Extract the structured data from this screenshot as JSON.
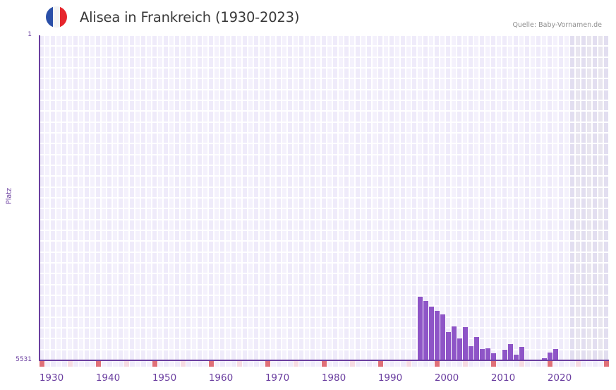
{
  "header": {
    "flag_icon": "france-flag-icon",
    "flag_colors": [
      "#2a4fa8",
      "#f4f4f4",
      "#e6262d"
    ],
    "title": "Alisea in Frankreich (1930-2023)",
    "source": "Quelle: Baby-Vornamen.de"
  },
  "colors": {
    "bar": "#8e55c7",
    "axis": "#6b3fa0",
    "grid_a": "#efebfa",
    "grid_b": "#f4f1fc",
    "future_a": "#e2def0",
    "future_b": "#e8e5ef",
    "marker_decade": "#e07078",
    "marker_half": "#f6dbe2"
  },
  "chart_data": {
    "type": "bar",
    "title": "Alisea in Frankreich (1930-2023)",
    "xlabel": "",
    "ylabel": "Platz",
    "y_inverted": true,
    "ylim": [
      1,
      5531
    ],
    "yticks": [
      "1",
      "5531"
    ],
    "xlim": [
      1930,
      2030
    ],
    "xticks": [
      "1930",
      "1940",
      "1950",
      "1960",
      "1970",
      "1980",
      "1990",
      "2000",
      "2010",
      "2020"
    ],
    "grid": true,
    "future_shaded_from": 2024,
    "categories": [
      1997,
      1998,
      1999,
      2000,
      2001,
      2002,
      2003,
      2004,
      2005,
      2006,
      2007,
      2008,
      2009,
      2010,
      2012,
      2013,
      2014,
      2015,
      2019,
      2020,
      2021
    ],
    "series": [
      {
        "name": "Platz",
        "values": [
          4449,
          4521,
          4617,
          4689,
          4749,
          5050,
          4954,
          5158,
          4966,
          5291,
          5134,
          5339,
          5327,
          5411,
          5351,
          5255,
          5435,
          5303,
          5495,
          5399,
          5339
        ]
      }
    ]
  }
}
